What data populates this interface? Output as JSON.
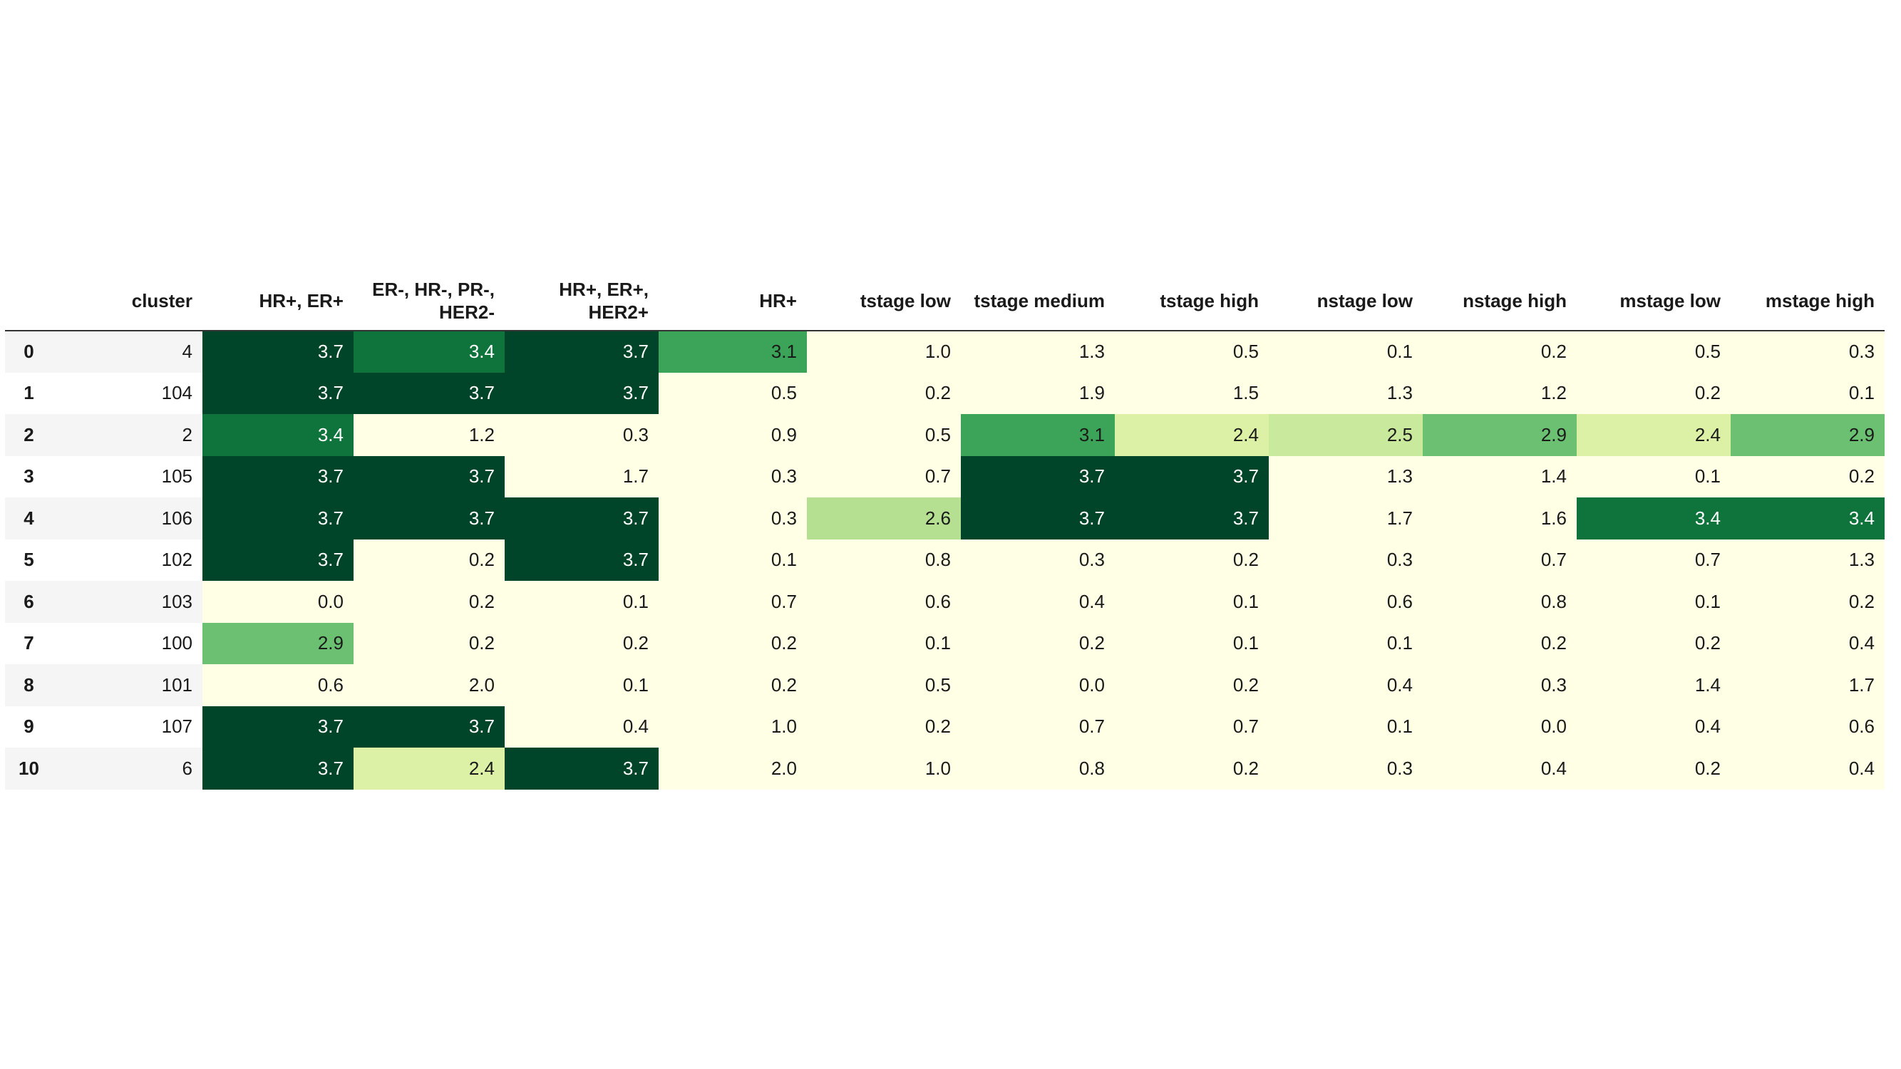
{
  "chart_data": {
    "type": "heatmap",
    "columns": [
      "cluster",
      "HR+, ER+",
      "ER-, HR-, PR-, HER2-",
      "HR+, ER+, HER2+",
      "HR+",
      "tstage low",
      "tstage medium",
      "tstage high",
      "nstage low",
      "nstage high",
      "mstage low",
      "mstage high"
    ],
    "index": [
      "0",
      "1",
      "2",
      "3",
      "4",
      "5",
      "6",
      "7",
      "8",
      "9",
      "10"
    ],
    "cluster": [
      "4",
      "104",
      "2",
      "105",
      "106",
      "102",
      "103",
      "100",
      "101",
      "107",
      "6"
    ],
    "values": [
      [
        "3.7",
        "3.4",
        "3.7",
        "3.1",
        "1.0",
        "1.3",
        "0.5",
        "0.1",
        "0.2",
        "0.5",
        "0.3"
      ],
      [
        "3.7",
        "3.7",
        "3.7",
        "0.5",
        "0.2",
        "1.9",
        "1.5",
        "1.3",
        "1.2",
        "0.2",
        "0.1"
      ],
      [
        "3.4",
        "1.2",
        "0.3",
        "0.9",
        "0.5",
        "3.1",
        "2.4",
        "2.5",
        "2.9",
        "2.4",
        "2.9"
      ],
      [
        "3.7",
        "3.7",
        "1.7",
        "0.3",
        "0.7",
        "3.7",
        "3.7",
        "1.3",
        "1.4",
        "0.1",
        "0.2"
      ],
      [
        "3.7",
        "3.7",
        "3.7",
        "0.3",
        "2.6",
        "3.7",
        "3.7",
        "1.7",
        "1.6",
        "3.4",
        "3.4"
      ],
      [
        "3.7",
        "0.2",
        "3.7",
        "0.1",
        "0.8",
        "0.3",
        "0.2",
        "0.3",
        "0.7",
        "0.7",
        "1.3"
      ],
      [
        "0.0",
        "0.2",
        "0.1",
        "0.7",
        "0.6",
        "0.4",
        "0.1",
        "0.6",
        "0.8",
        "0.1",
        "0.2"
      ],
      [
        "2.9",
        "0.2",
        "0.2",
        "0.2",
        "0.1",
        "0.2",
        "0.1",
        "0.1",
        "0.2",
        "0.2",
        "0.4"
      ],
      [
        "0.6",
        "2.0",
        "0.1",
        "0.2",
        "0.5",
        "0.0",
        "0.2",
        "0.4",
        "0.3",
        "1.4",
        "1.7"
      ],
      [
        "3.7",
        "3.7",
        "0.4",
        "1.0",
        "0.2",
        "0.7",
        "0.7",
        "0.1",
        "0.0",
        "0.4",
        "0.6"
      ],
      [
        "3.7",
        "2.4",
        "3.7",
        "2.0",
        "1.0",
        "0.8",
        "0.2",
        "0.3",
        "0.4",
        "0.2",
        "0.4"
      ]
    ],
    "colormap": "YlGn",
    "vmin": 2.0,
    "vmax": 3.7,
    "colors": {
      "low": "#ffffe5",
      "high": "#004529",
      "stripe": "#f5f5f5",
      "text_dark": "#1a1a1a",
      "text_light": "#ffffff"
    }
  }
}
